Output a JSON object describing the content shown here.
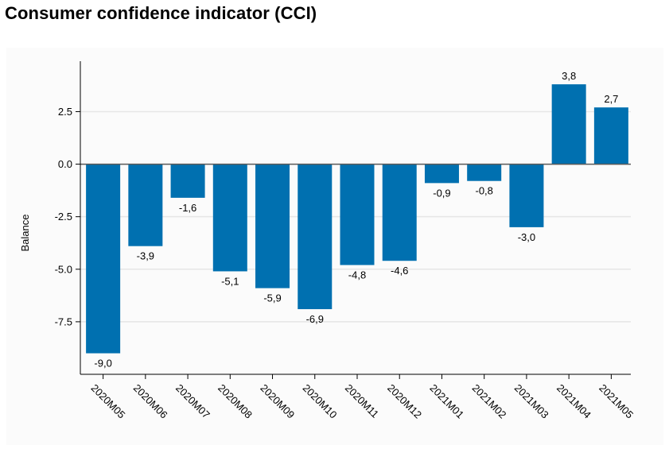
{
  "page": {
    "title": "Consumer confidence indicator (CCI)"
  },
  "chart_data": {
    "type": "bar",
    "title": "Consumer confidence indicator (CCI)",
    "xlabel": "",
    "ylabel": "Balance",
    "categories": [
      "2020M05",
      "2020M06",
      "2020M07",
      "2020M08",
      "2020M09",
      "2020M10",
      "2020M11",
      "2020M12",
      "2021M01",
      "2021M02",
      "2021M03",
      "2021M04",
      "2021M05"
    ],
    "values": [
      -9.0,
      -3.9,
      -1.6,
      -5.1,
      -5.9,
      -6.9,
      -4.8,
      -4.6,
      -0.9,
      -0.8,
      -3.0,
      3.8,
      2.7
    ],
    "data_labels": [
      "-9,0",
      "-3,9",
      "-1,6",
      "-5,1",
      "-5,9",
      "-6,9",
      "-4,8",
      "-4,6",
      "-0,9",
      "-0,8",
      "-3,0",
      "3,8",
      "2,7"
    ],
    "ylim": [
      -10.0,
      4.9
    ],
    "yticks": [
      2.5,
      0.0,
      -2.5,
      -5.0,
      -7.5
    ],
    "ytick_labels": [
      "2.5",
      "0.0",
      "-2.5",
      "-5.0",
      "-7.5"
    ],
    "grid": true,
    "legend": "none",
    "colors": {
      "bar": "#0070b0",
      "grid": "#e6e6e6",
      "axis": "#000000"
    }
  }
}
